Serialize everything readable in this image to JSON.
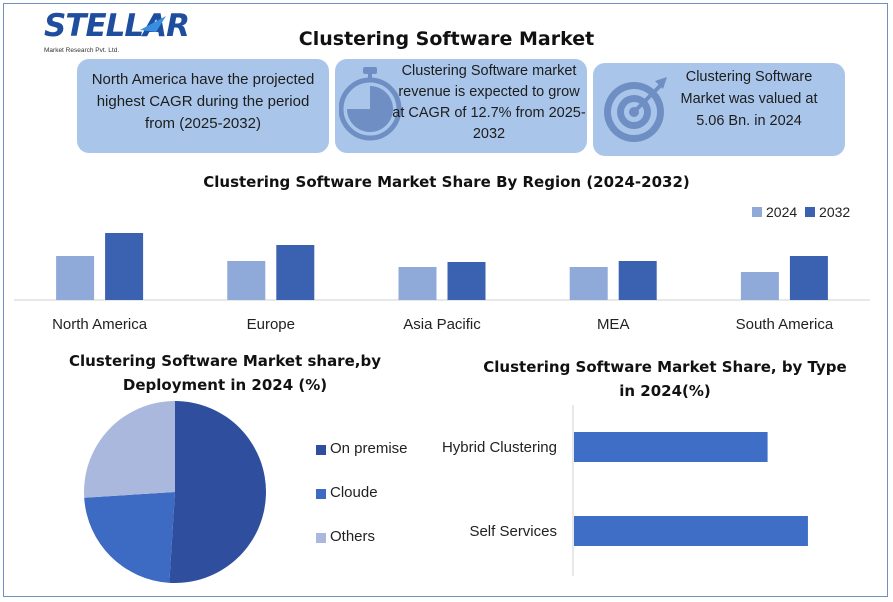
{
  "logo": {
    "word": "STELLAR",
    "sub": "Market Research Pvt. Ltd."
  },
  "title": "Clustering Software Market",
  "info_boxes": [
    {
      "text": "North America have the projected highest CAGR during the period from (2025-2032)"
    },
    {
      "text": "Clustering Software market revenue is expected to grow at CAGR of 12.7% from 2025-2032",
      "icon": "stopwatch-icon"
    },
    {
      "text": "Clustering Software Market was valued at 5.06 Bn. in 2024",
      "icon": "target-icon"
    }
  ],
  "colors": {
    "box": "#a9c6ea",
    "series_2024": "#8fa9d8",
    "series_2032": "#3a62b0",
    "pie_on_premise": "#2f4f9e",
    "pie_cloude": "#3d6ac2",
    "pie_others": "#aab8dd",
    "hbar": "#3f6ec7"
  },
  "chart_data": [
    {
      "type": "bar",
      "title": "Clustering Software Market Share By Region (2024-2032)",
      "categories": [
        "North America",
        "Europe",
        "Asia Pacific",
        "MEA",
        "South America"
      ],
      "series": [
        {
          "name": "2024",
          "values": [
            44,
            39,
            33,
            33,
            28
          ]
        },
        {
          "name": "2032",
          "values": [
            67,
            55,
            38,
            39,
            44
          ]
        }
      ],
      "legend": "top-right",
      "ylim": [
        0,
        75
      ]
    },
    {
      "type": "pie",
      "title": "Clustering Software  Market share,by Deployment in 2024 (%)",
      "labels": [
        "On premise",
        "Cloude",
        "Others"
      ],
      "values": [
        51,
        23,
        26
      ],
      "legend": "right"
    },
    {
      "type": "bar",
      "orientation": "horizontal",
      "title": "Clustering Software Market Share, by Type in 2024(%)",
      "categories": [
        "Hybrid Clustering",
        "Self Services"
      ],
      "values": [
        48,
        58
      ],
      "xlim": [
        0,
        60
      ]
    }
  ]
}
